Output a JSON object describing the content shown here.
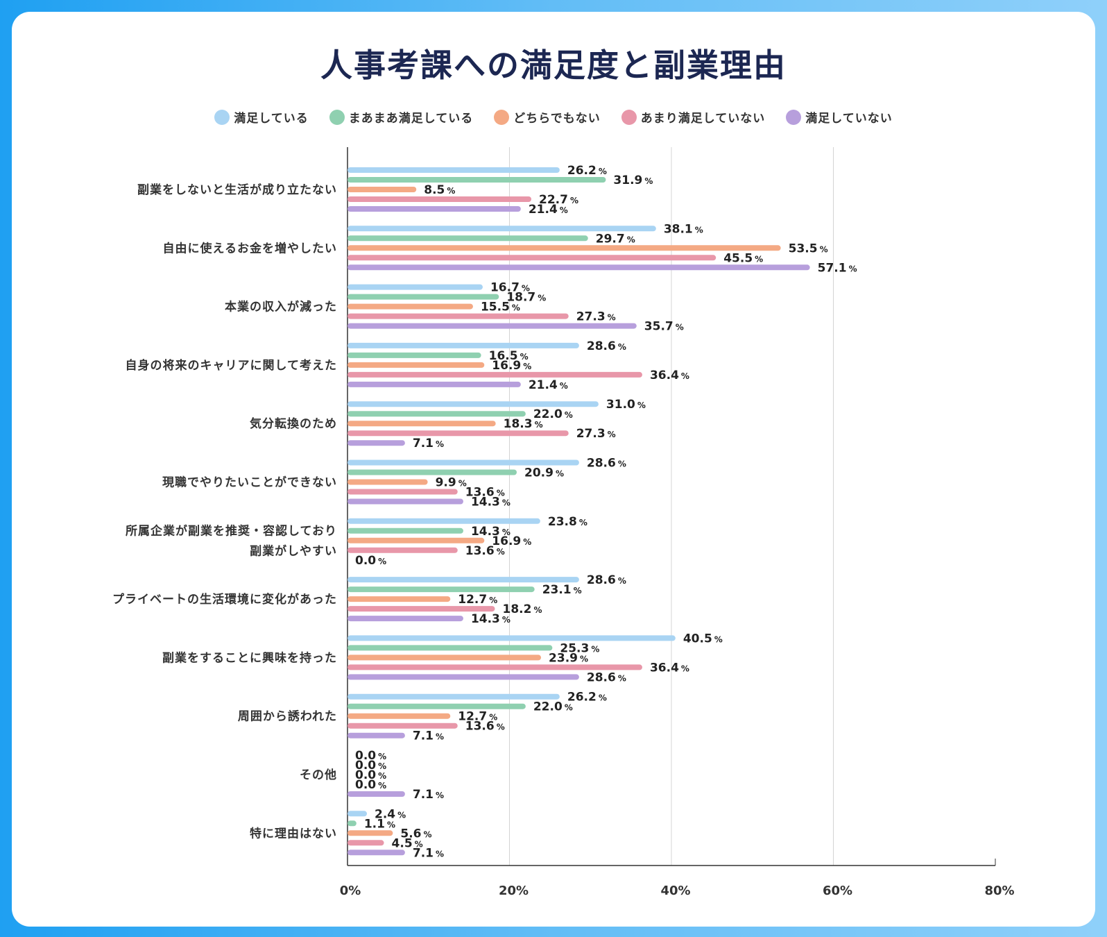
{
  "page": {
    "title": "人事考課への満足度と副業理由"
  },
  "chart_data": {
    "type": "bar",
    "orientation": "horizontal",
    "title": "人事考課への満足度と副業理由",
    "xlabel": "",
    "ylabel": "",
    "xlim": [
      0,
      80
    ],
    "xticks": [
      "0%",
      "20%",
      "40%",
      "60%",
      "80%"
    ],
    "grid": true,
    "legend_position": "top",
    "value_suffix": "%",
    "categories": [
      "副業をしないと生活が成り立たない",
      "自由に使えるお金を増やしたい",
      "本業の収入が減った",
      "自身の将来のキャリアに関して考えた",
      "気分転換のため",
      "現職でやりたいことができない",
      "所属企業が副業を推奨・容認しており\n副業がしやすい",
      "プライベートの生活環境に変化があった",
      "副業をすることに興味を持った",
      "周囲から誘われた",
      "その他",
      "特に理由はない"
    ],
    "series": [
      {
        "name": "満足している",
        "color": "#a9d4f3",
        "values": [
          26.2,
          38.1,
          16.7,
          28.6,
          31.0,
          28.6,
          23.8,
          28.6,
          40.5,
          26.2,
          0.0,
          2.4
        ]
      },
      {
        "name": "まあまあ満足している",
        "color": "#8fd0b0",
        "values": [
          31.9,
          29.7,
          18.7,
          16.5,
          22.0,
          20.9,
          14.3,
          23.1,
          25.3,
          22.0,
          0.0,
          1.1
        ]
      },
      {
        "name": "どちらでもない",
        "color": "#f4a984",
        "values": [
          8.5,
          53.5,
          15.5,
          16.9,
          18.3,
          9.9,
          16.9,
          12.7,
          23.9,
          12.7,
          0.0,
          5.6
        ]
      },
      {
        "name": "あまり満足していない",
        "color": "#e897a9",
        "values": [
          22.7,
          45.5,
          27.3,
          36.4,
          27.3,
          13.6,
          13.6,
          18.2,
          36.4,
          13.6,
          0.0,
          4.5
        ]
      },
      {
        "name": "満足していない",
        "color": "#b79fdc",
        "values": [
          21.4,
          57.1,
          35.7,
          21.4,
          7.1,
          14.3,
          0.0,
          14.3,
          28.6,
          7.1,
          7.1,
          7.1
        ]
      }
    ]
  }
}
